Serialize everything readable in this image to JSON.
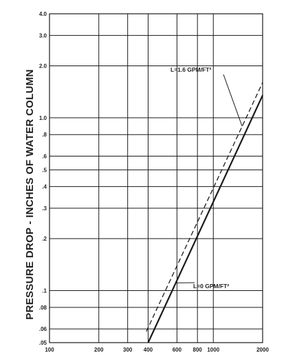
{
  "chart_data": {
    "type": "line",
    "title": "",
    "xlabel": "",
    "ylabel": "PRESSURE DROP - INCHES OF WATER COLUMN",
    "x_scale": "log",
    "y_scale": "log",
    "xlim": [
      100,
      2000
    ],
    "ylim": [
      0.05,
      4.0
    ],
    "grid": true,
    "x_ticks": [
      100,
      200,
      300,
      400,
      600,
      800,
      1000,
      2000
    ],
    "x_tick_labels": [
      "100",
      "200",
      "300",
      "400",
      "600",
      "800",
      "1000",
      "2000"
    ],
    "y_ticks": [
      0.05,
      0.06,
      0.08,
      0.1,
      0.2,
      0.3,
      0.4,
      0.5,
      0.6,
      0.8,
      1.0,
      2.0,
      3.0,
      4.0
    ],
    "y_tick_labels": [
      ".05",
      ".06",
      ".08",
      ".1",
      ".2",
      ".3",
      ".4",
      ".5",
      ".6",
      ".8",
      "1.0",
      "2.0",
      "3.0",
      "4.0"
    ],
    "series": [
      {
        "name": "L=0 GPM/FT²",
        "style": "solid",
        "color": "#1a1a1a",
        "x": [
          400,
          2000
        ],
        "y": [
          0.05,
          1.35
        ]
      },
      {
        "name": "L=1.6 GPM/FT²",
        "style": "dashed",
        "color": "#1a1a1a",
        "x": [
          390,
          2000
        ],
        "y": [
          0.058,
          1.6
        ]
      }
    ],
    "annotations": [
      {
        "text": "L=1.6 GPM/FT²",
        "series": 1
      },
      {
        "text": "L=0 GPM/FT²",
        "series": 0
      }
    ]
  }
}
